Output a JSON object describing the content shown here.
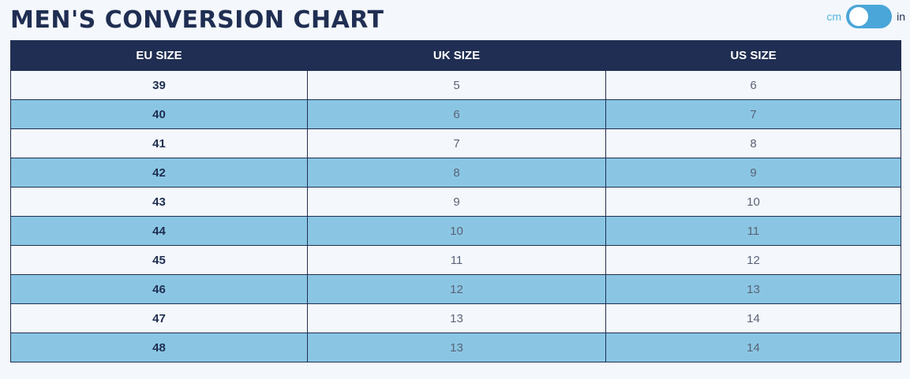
{
  "header": {
    "title": "MEN'S CONVERSION CHART"
  },
  "unit_toggle": {
    "left_label": "cm",
    "right_label": "in",
    "selected": "cm"
  },
  "table": {
    "columns": [
      "EU SIZE",
      "UK SIZE",
      "US SIZE"
    ],
    "rows": [
      [
        "39",
        "5",
        "6"
      ],
      [
        "40",
        "6",
        "7"
      ],
      [
        "41",
        "7",
        "8"
      ],
      [
        "42",
        "8",
        "9"
      ],
      [
        "43",
        "9",
        "10"
      ],
      [
        "44",
        "10",
        "11"
      ],
      [
        "45",
        "11",
        "12"
      ],
      [
        "46",
        "12",
        "13"
      ],
      [
        "47",
        "13",
        "14"
      ],
      [
        "48",
        "13",
        "14"
      ]
    ]
  },
  "colors": {
    "header_bg": "#1f2e52",
    "row_alt_bg": "#8ac6e3",
    "toggle_bg": "#4aa6d8"
  }
}
